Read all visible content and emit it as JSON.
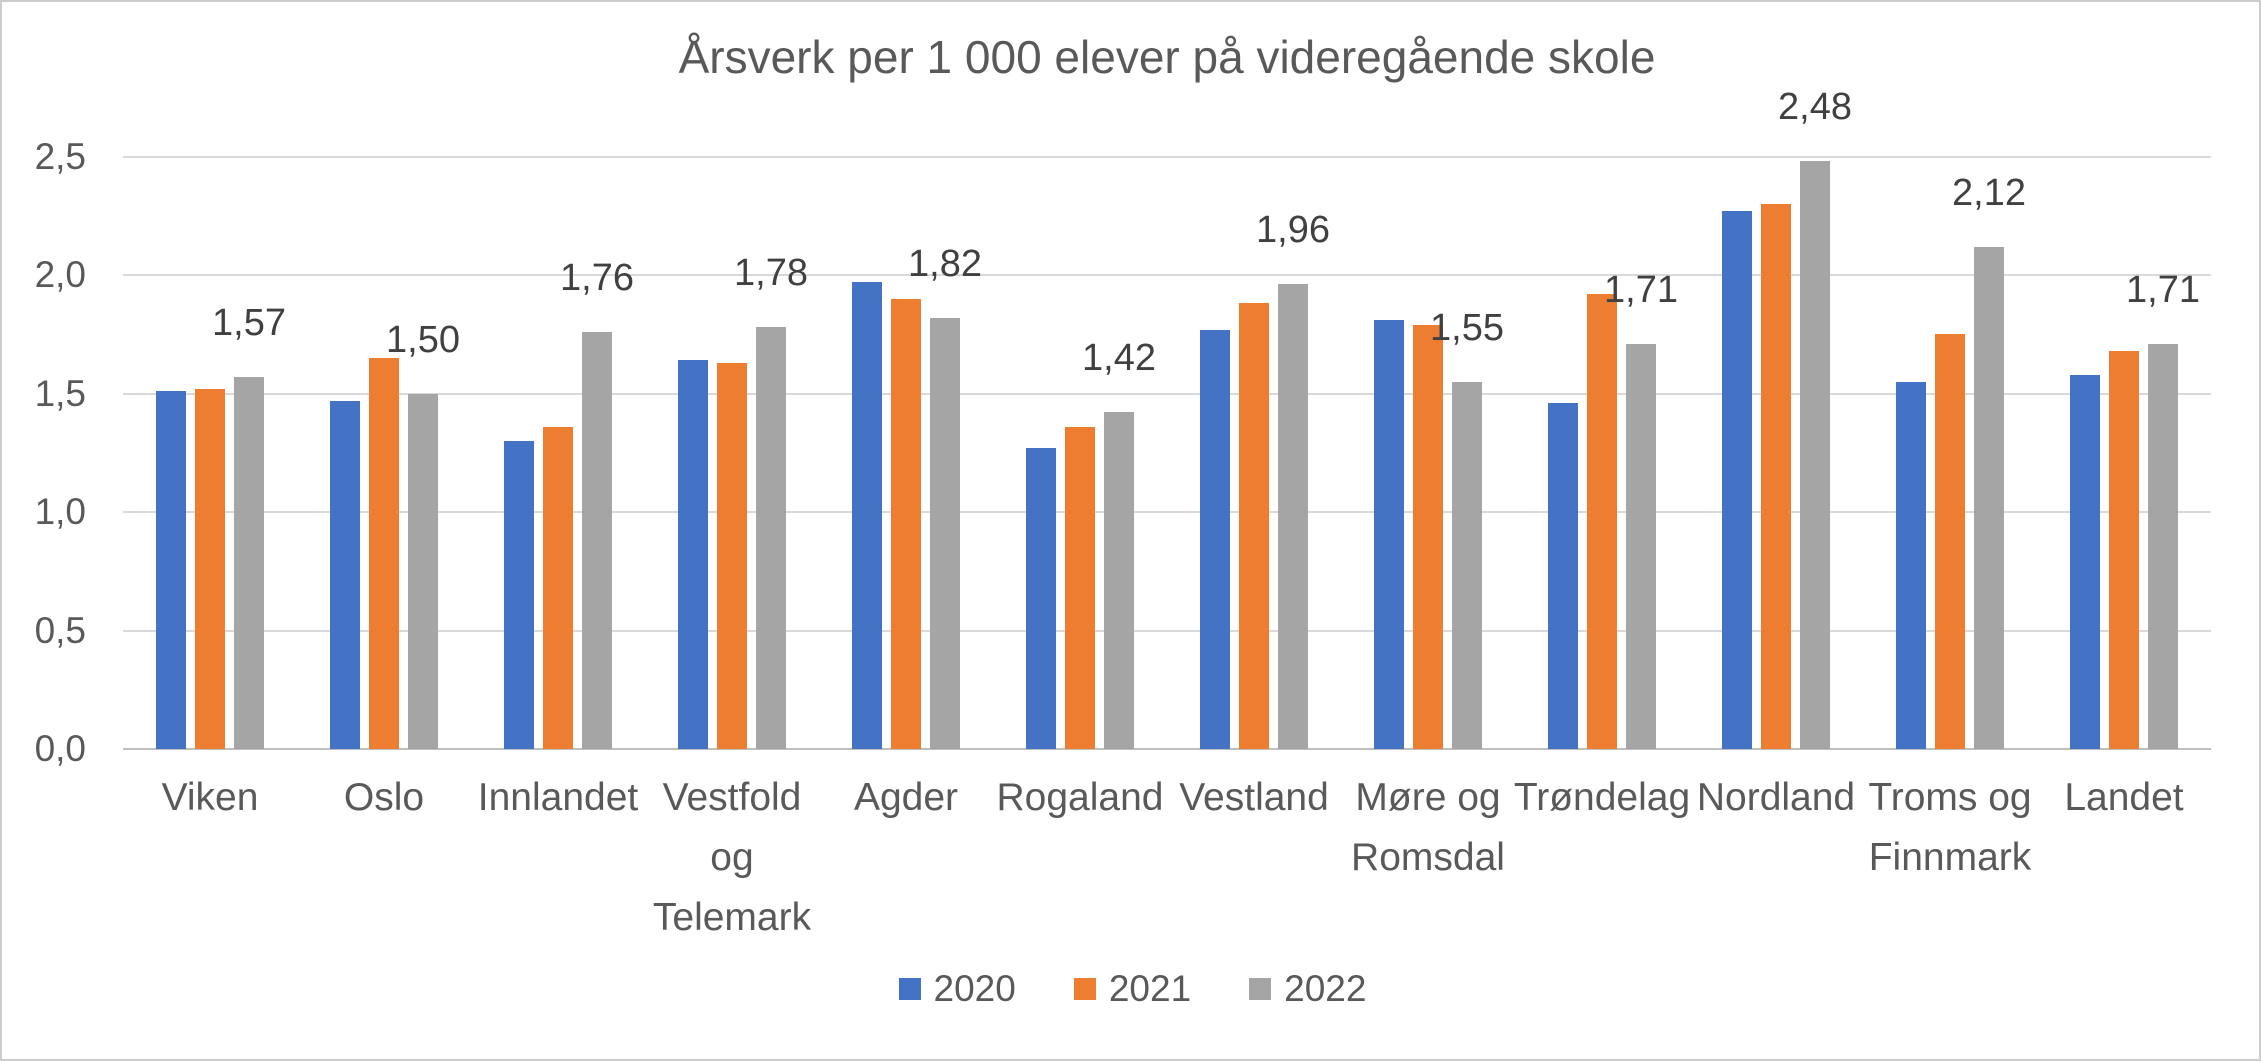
{
  "chart_data": {
    "type": "bar",
    "title": "Årsverk per 1 000 elever på videregående skole",
    "categories": [
      "Viken",
      "Oslo",
      "Innlandet",
      "Vestfold og Telemark",
      "Agder",
      "Rogaland",
      "Vestland",
      "Møre og Romsdal",
      "Trøndelag",
      "Nordland",
      "Troms og Finnmark",
      "Landet"
    ],
    "series": [
      {
        "name": "2020",
        "color": "#4472C4",
        "values": [
          1.51,
          1.47,
          1.3,
          1.64,
          1.97,
          1.27,
          1.77,
          1.81,
          1.46,
          2.27,
          1.55,
          1.58
        ]
      },
      {
        "name": "2021",
        "color": "#ED7D31",
        "values": [
          1.52,
          1.65,
          1.36,
          1.63,
          1.9,
          1.36,
          1.88,
          1.79,
          1.92,
          2.3,
          1.75,
          1.68
        ]
      },
      {
        "name": "2022",
        "color": "#A5A5A5",
        "values": [
          1.57,
          1.5,
          1.76,
          1.78,
          1.82,
          1.42,
          1.96,
          1.55,
          1.71,
          2.48,
          2.12,
          1.71
        ],
        "value_labels": [
          "1,57",
          "1,50",
          "1,76",
          "1,78",
          "1,82",
          "1,42",
          "1,96",
          "1,55",
          "1,71",
          "2,48",
          "2,12",
          "1,71"
        ]
      }
    ],
    "ylim": [
      0,
      2.5
    ],
    "ytick_labels": [
      "0,0",
      "0,5",
      "1,0",
      "1,5",
      "2,0",
      "2,5"
    ],
    "ytick_values": [
      0,
      0.5,
      1.0,
      1.5,
      2.0,
      2.5
    ],
    "grid": true,
    "legend_position": "bottom",
    "decimal_separator": ",",
    "colors": {
      "grid": "#d9d9d9",
      "axis_line": "#bfbfbf",
      "title_text": "#595959",
      "tick_text": "#595959",
      "data_label_text": "#404040"
    }
  }
}
